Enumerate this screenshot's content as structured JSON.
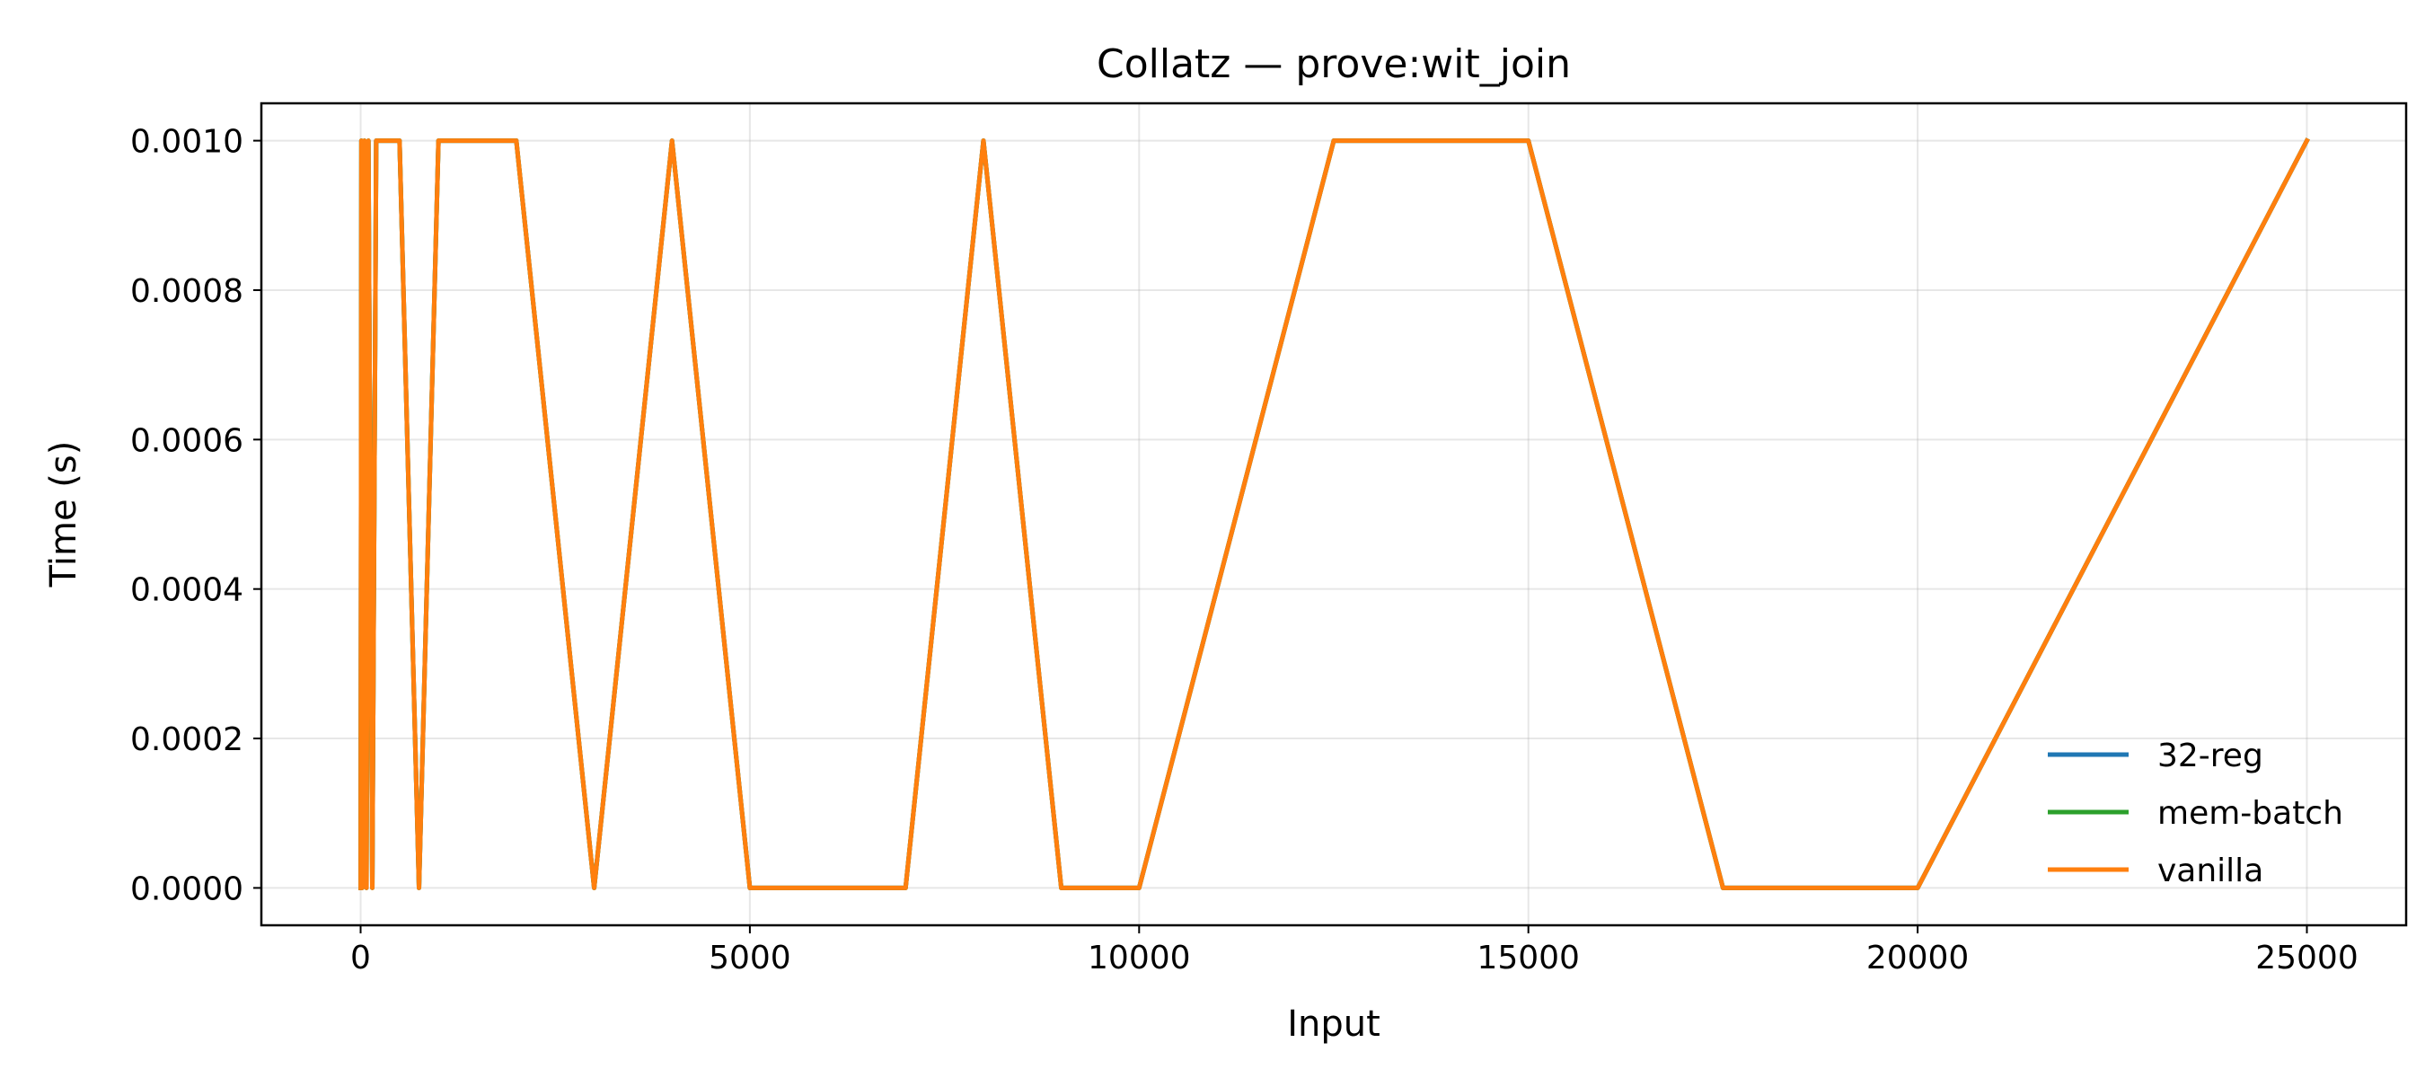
{
  "chart_data": {
    "type": "line",
    "title": "Collatz — prove:wit_join",
    "xlabel": "Input",
    "ylabel": "Time (s)",
    "xlim": [
      -1275,
      26275
    ],
    "ylim": [
      -5e-05,
      0.00105
    ],
    "x_ticks": [
      0,
      5000,
      10000,
      15000,
      20000,
      25000
    ],
    "x_tick_labels": [
      "0",
      "5000",
      "10000",
      "15000",
      "20000",
      "25000"
    ],
    "y_ticks": [
      0,
      0.0002,
      0.0004,
      0.0006,
      0.0008,
      0.001
    ],
    "y_tick_labels": [
      "0.0000",
      "0.0002",
      "0.0004",
      "0.0006",
      "0.0008",
      "0.0010"
    ],
    "grid": true,
    "legend_position": "lower-right",
    "x": [
      1,
      10,
      20,
      50,
      75,
      100,
      150,
      200,
      250,
      500,
      750,
      1000,
      2000,
      3000,
      4000,
      5000,
      7000,
      8000,
      9000,
      10000,
      12500,
      15000,
      17500,
      20000,
      25000
    ],
    "series": [
      {
        "name": "32-reg",
        "color": "#1f77b4",
        "values": [
          0,
          0.001,
          0,
          0.001,
          0,
          0.001,
          0,
          0.001,
          0.001,
          0.001,
          0,
          0.001,
          0.001,
          0,
          0.001,
          0,
          0,
          0.001,
          0,
          0,
          0.001,
          0.001,
          0,
          0,
          0.001
        ]
      },
      {
        "name": "mem-batch",
        "color": "#2ca02c",
        "values": [
          0,
          0.001,
          0,
          0.001,
          0,
          0.001,
          0,
          0.001,
          0.001,
          0.001,
          0,
          0.001,
          0.001,
          0,
          0.001,
          0,
          0,
          0.001,
          0,
          0,
          0.001,
          0.001,
          0,
          0,
          0.001
        ]
      },
      {
        "name": "vanilla",
        "color": "#ff7f0e",
        "values": [
          0,
          0.001,
          0,
          0.001,
          0,
          0.001,
          0,
          0.001,
          0.001,
          0.001,
          0,
          0.001,
          0.001,
          0,
          0.001,
          0,
          0,
          0.001,
          0,
          0,
          0.001,
          0.001,
          0,
          0,
          0.001
        ]
      }
    ]
  }
}
